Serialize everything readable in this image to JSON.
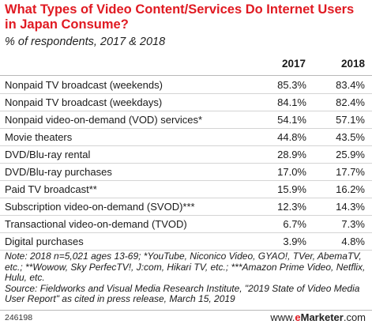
{
  "header": {
    "title": "What Types of Video Content/Services Do Internet Users in Japan Consume?",
    "subtitle": "% of respondents, 2017 & 2018"
  },
  "table": {
    "columns": [
      "2017",
      "2018"
    ],
    "rows": [
      {
        "label": "Nonpaid TV broadcast (weekends)",
        "v2017": "85.3%",
        "v2018": "83.4%"
      },
      {
        "label": "Nonpaid TV broadcast (weekdays)",
        "v2017": "84.1%",
        "v2018": "82.4%"
      },
      {
        "label": "Nonpaid video-on-demand (VOD) services*",
        "v2017": "54.1%",
        "v2018": "57.1%"
      },
      {
        "label": "Movie theaters",
        "v2017": "44.8%",
        "v2018": "43.5%"
      },
      {
        "label": "DVD/Blu-ray rental",
        "v2017": "28.9%",
        "v2018": "25.9%"
      },
      {
        "label": "DVD/Blu-ray purchases",
        "v2017": "17.0%",
        "v2018": "17.7%"
      },
      {
        "label": "Paid TV broadcast**",
        "v2017": "15.9%",
        "v2018": "16.2%"
      },
      {
        "label": "Subscription video-on-demand (SVOD)***",
        "v2017": "12.3%",
        "v2018": "14.3%"
      },
      {
        "label": "Transactional video-on-demand (TVOD)",
        "v2017": "6.7%",
        "v2018": "7.3%"
      },
      {
        "label": "Digital purchases",
        "v2017": "3.9%",
        "v2018": "4.8%"
      }
    ]
  },
  "notes": {
    "note": "Note: 2018 n=5,021 ages 13-69; *YouTube, Niconico Video, GYAO!, TVer, AbemaTV, etc.; **Wowow, Sky PerfecTV!, J:com, Hikari TV, etc.; ***Amazon Prime Video, Netflix, Hulu, etc.",
    "source": "Source: Fieldworks and Visual Media Research Institute, \"2019 State of Video Media User Report\" as cited in press release, March 15, 2019"
  },
  "footer": {
    "id": "246198",
    "brand_prefix": "www.",
    "brand_e": "e",
    "brand_rest": "Marketer",
    "brand_suffix": ".com"
  },
  "colors": {
    "title": "#e01a22",
    "rule": "#d4d4d4"
  },
  "chart_data": {
    "type": "table",
    "title": "What Types of Video Content/Services Do Internet Users in Japan Consume?",
    "subtitle": "% of respondents, 2017 & 2018",
    "categories": [
      "Nonpaid TV broadcast (weekends)",
      "Nonpaid TV broadcast (weekdays)",
      "Nonpaid video-on-demand (VOD) services*",
      "Movie theaters",
      "DVD/Blu-ray rental",
      "DVD/Blu-ray purchases",
      "Paid TV broadcast**",
      "Subscription video-on-demand (SVOD)***",
      "Transactional video-on-demand (TVOD)",
      "Digital purchases"
    ],
    "series": [
      {
        "name": "2017",
        "values": [
          85.3,
          84.1,
          54.1,
          44.8,
          28.9,
          17.0,
          15.9,
          12.3,
          6.7,
          3.9
        ]
      },
      {
        "name": "2018",
        "values": [
          83.4,
          82.4,
          57.1,
          43.5,
          25.9,
          17.7,
          16.2,
          14.3,
          7.3,
          4.8
        ]
      }
    ]
  }
}
